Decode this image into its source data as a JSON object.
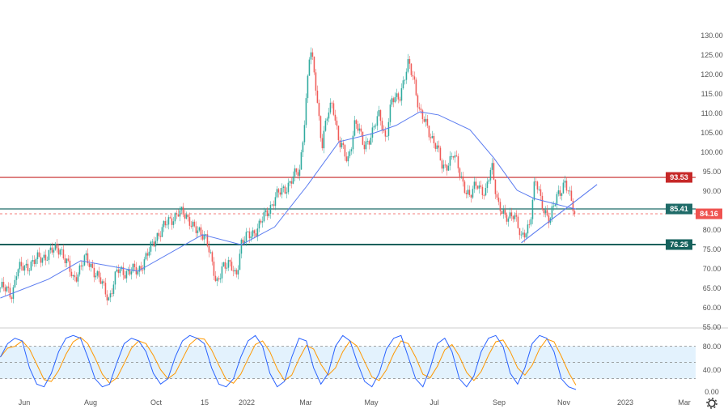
{
  "chart_data": {
    "type": "candlestick",
    "price_axis": {
      "ticks": [
        "130.00",
        "125.00",
        "120.00",
        "115.00",
        "110.00",
        "105.00",
        "100.00",
        "95.00",
        "90.00",
        "80.00",
        "75.00",
        "70.00",
        "65.00",
        "60.00",
        "55.00"
      ],
      "range": [
        55,
        130
      ]
    },
    "x_axis": {
      "ticks": [
        "Jun",
        "Aug",
        "Oct",
        "15",
        "2022",
        "Mar",
        "May",
        "Jul",
        "Sep",
        "Nov",
        "2023",
        "Mar"
      ]
    },
    "price_path": [
      {
        "date": "2021-05-10",
        "close": 65.2
      },
      {
        "date": "2021-05-21",
        "close": 63.7
      },
      {
        "date": "2021-05-25",
        "close": 69.4
      },
      {
        "date": "2021-06-08",
        "close": 71.5
      },
      {
        "date": "2021-07-04",
        "close": 75.6
      },
      {
        "date": "2021-07-16",
        "close": 67.3
      },
      {
        "date": "2021-07-27",
        "close": 72.5
      },
      {
        "date": "2021-08-03",
        "close": 70.4
      },
      {
        "date": "2021-08-18",
        "close": 62.5
      },
      {
        "date": "2021-08-26",
        "close": 69.4
      },
      {
        "date": "2021-09-14",
        "close": 69.4
      },
      {
        "date": "2021-09-25",
        "close": 74.6
      },
      {
        "date": "2021-10-02",
        "close": 78.8
      },
      {
        "date": "2021-10-21",
        "close": 84.6
      },
      {
        "date": "2021-11-01",
        "close": 82.9
      },
      {
        "date": "2021-11-09",
        "close": 78.8
      },
      {
        "date": "2021-11-17",
        "close": 78.8
      },
      {
        "date": "2021-11-23",
        "close": 71.5
      },
      {
        "date": "2021-11-28",
        "close": 65.2
      },
      {
        "date": "2021-12-05",
        "close": 71.5
      },
      {
        "date": "2021-12-14",
        "close": 70.4
      },
      {
        "date": "2021-12-20",
        "close": 68.3
      },
      {
        "date": "2021-12-26",
        "close": 76.7
      },
      {
        "date": "2022-01-13",
        "close": 80.8
      },
      {
        "date": "2022-01-29",
        "close": 88.1
      },
      {
        "date": "2022-02-10",
        "close": 91.3
      },
      {
        "date": "2022-02-23",
        "close": 95.4
      },
      {
        "date": "2022-03-01",
        "close": 112.1
      },
      {
        "date": "2022-03-05",
        "close": 126.7
      },
      {
        "date": "2022-03-10",
        "close": 118.3
      },
      {
        "date": "2022-03-16",
        "close": 101.7
      },
      {
        "date": "2022-03-21",
        "close": 109.0
      },
      {
        "date": "2022-03-26",
        "close": 113.1
      },
      {
        "date": "2022-04-01",
        "close": 102.7
      },
      {
        "date": "2022-04-09",
        "close": 97.5
      },
      {
        "date": "2022-04-16",
        "close": 108.0
      },
      {
        "date": "2022-04-24",
        "close": 101.7
      },
      {
        "date": "2022-05-02",
        "close": 104.8
      },
      {
        "date": "2022-05-09",
        "close": 110.0
      },
      {
        "date": "2022-05-15",
        "close": 103.5
      },
      {
        "date": "2022-05-21",
        "close": 113.1
      },
      {
        "date": "2022-05-29",
        "close": 115.2
      },
      {
        "date": "2022-06-06",
        "close": 122.5
      },
      {
        "date": "2022-06-11",
        "close": 119.4
      },
      {
        "date": "2022-06-17",
        "close": 110.0
      },
      {
        "date": "2022-06-25",
        "close": 105.8
      },
      {
        "date": "2022-07-03",
        "close": 101.7
      },
      {
        "date": "2022-07-09",
        "close": 95.4
      },
      {
        "date": "2022-07-19",
        "close": 99.6
      },
      {
        "date": "2022-07-27",
        "close": 93.3
      },
      {
        "date": "2022-08-04",
        "close": 88.1
      },
      {
        "date": "2022-08-11",
        "close": 92.3
      },
      {
        "date": "2022-08-19",
        "close": 89.2
      },
      {
        "date": "2022-08-25",
        "close": 96.5
      },
      {
        "date": "2022-08-31",
        "close": 87.1
      },
      {
        "date": "2022-09-07",
        "close": 82.3
      },
      {
        "date": "2022-09-15",
        "close": 85.0
      },
      {
        "date": "2022-09-22",
        "close": 77.1
      },
      {
        "date": "2022-09-30",
        "close": 82.3
      },
      {
        "date": "2022-10-05",
        "close": 92.7
      },
      {
        "date": "2022-10-11",
        "close": 87.1
      },
      {
        "date": "2022-10-19",
        "close": 82.3
      },
      {
        "date": "2022-10-26",
        "close": 89.2
      },
      {
        "date": "2022-11-02",
        "close": 92.3
      },
      {
        "date": "2022-11-07",
        "close": 88.1
      },
      {
        "date": "2022-11-13",
        "close": 84.16
      }
    ],
    "moving_average": [
      {
        "date": "2021-05-10",
        "value": 62.5
      },
      {
        "date": "2021-06-23",
        "value": 67.3
      },
      {
        "date": "2021-07-23",
        "value": 72.1
      },
      {
        "date": "2021-09-14",
        "value": 69.4
      },
      {
        "date": "2021-11-13",
        "value": 78.8
      },
      {
        "date": "2021-12-26",
        "value": 76.2
      },
      {
        "date": "2022-01-29",
        "value": 80.8
      },
      {
        "date": "2022-03-02",
        "value": 91.3
      },
      {
        "date": "2022-04-01",
        "value": 102.7
      },
      {
        "date": "2022-05-02",
        "value": 104.8
      },
      {
        "date": "2022-05-25",
        "value": 106.9
      },
      {
        "date": "2022-06-17",
        "value": 110.4
      },
      {
        "date": "2022-07-05",
        "value": 109.6
      },
      {
        "date": "2022-08-04",
        "value": 105.8
      },
      {
        "date": "2022-08-27",
        "value": 98.5
      },
      {
        "date": "2022-09-18",
        "value": 90.2
      },
      {
        "date": "2022-10-04",
        "value": 88.1
      },
      {
        "date": "2022-11-03",
        "value": 86.0
      },
      {
        "date": "2022-11-13",
        "value": 85.4
      }
    ],
    "trendline": [
      {
        "date": "2022-09-22",
        "value": 76.7
      },
      {
        "date": "2022-12-04",
        "value": 91.7
      }
    ],
    "horizontal_levels": [
      {
        "value": 93.53,
        "label": "93.53",
        "color": "#c62828",
        "style": "solid"
      },
      {
        "value": 85.41,
        "label": "85.41",
        "color": "#1f6b68",
        "style": "solid"
      },
      {
        "value": 84.16,
        "label": "84.16",
        "color": "#ef5350",
        "style": "dashed"
      },
      {
        "value": 76.25,
        "label": "76.25",
        "color": "#15615c",
        "style": "solid-thick"
      }
    ],
    "oscillator": {
      "ticks": [
        "80.00",
        "40.00",
        "0.00"
      ],
      "range": [
        0,
        100
      ],
      "bands": [
        20,
        80
      ],
      "k_values": [
        60,
        85,
        95,
        90,
        40,
        10,
        5,
        30,
        70,
        95,
        100,
        95,
        60,
        20,
        5,
        10,
        50,
        85,
        95,
        90,
        70,
        30,
        10,
        20,
        60,
        90,
        100,
        95,
        85,
        40,
        10,
        5,
        20,
        60,
        90,
        100,
        80,
        30,
        5,
        15,
        60,
        95,
        90,
        40,
        10,
        30,
        80,
        100,
        90,
        50,
        15,
        5,
        30,
        75,
        95,
        100,
        60,
        20,
        5,
        40,
        85,
        95,
        70,
        20,
        5,
        25,
        70,
        95,
        100,
        80,
        30,
        10,
        40,
        85,
        100,
        95,
        70,
        20,
        5,
        0
      ]
    },
    "colors": {
      "up": "#26a69a",
      "down": "#ef5350",
      "ma": "#5b7cf0",
      "k_line": "#2962ff",
      "d_line": "#ff9800",
      "band_fill": "#e3f2fd"
    }
  }
}
